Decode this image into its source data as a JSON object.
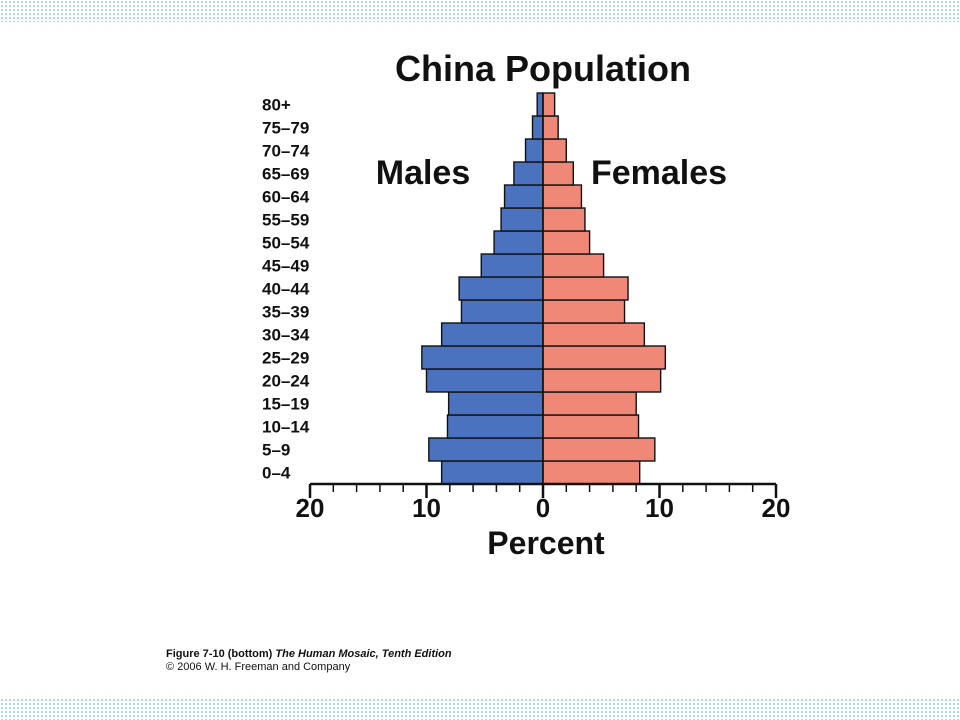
{
  "chart_data": {
    "type": "bar",
    "orientation": "horizontal-population-pyramid",
    "title": "China Population",
    "xlabel": "Percent",
    "ylabel": "",
    "xlim": [
      -20,
      20
    ],
    "xticks": [
      "20",
      "10",
      "0",
      "10",
      "20"
    ],
    "categories": [
      "0–4",
      "5–9",
      "10–14",
      "15–19",
      "20–24",
      "25–29",
      "30–34",
      "35–39",
      "40–44",
      "45–49",
      "50–54",
      "55–59",
      "60–64",
      "65–69",
      "70–74",
      "75–79",
      "80+"
    ],
    "series": [
      {
        "name": "Males",
        "color": "#4a72bf",
        "values": [
          8.7,
          9.8,
          8.2,
          8.1,
          10.0,
          10.4,
          8.7,
          7.0,
          7.2,
          5.3,
          4.2,
          3.6,
          3.3,
          2.5,
          1.5,
          0.9,
          0.5
        ]
      },
      {
        "name": "Females",
        "color": "#f08878",
        "values": [
          8.3,
          9.6,
          8.2,
          8.0,
          10.1,
          10.5,
          8.7,
          7.0,
          7.3,
          5.2,
          4.0,
          3.6,
          3.3,
          2.6,
          2.0,
          1.3,
          1.0
        ]
      }
    ],
    "grid": false,
    "legend": "inline-top"
  },
  "caption": {
    "figure": "Figure 7-10 (bottom)",
    "book": "The Human Mosaic, Tenth Edition",
    "copyright": "© 2006 W. H. Freeman and Company"
  }
}
